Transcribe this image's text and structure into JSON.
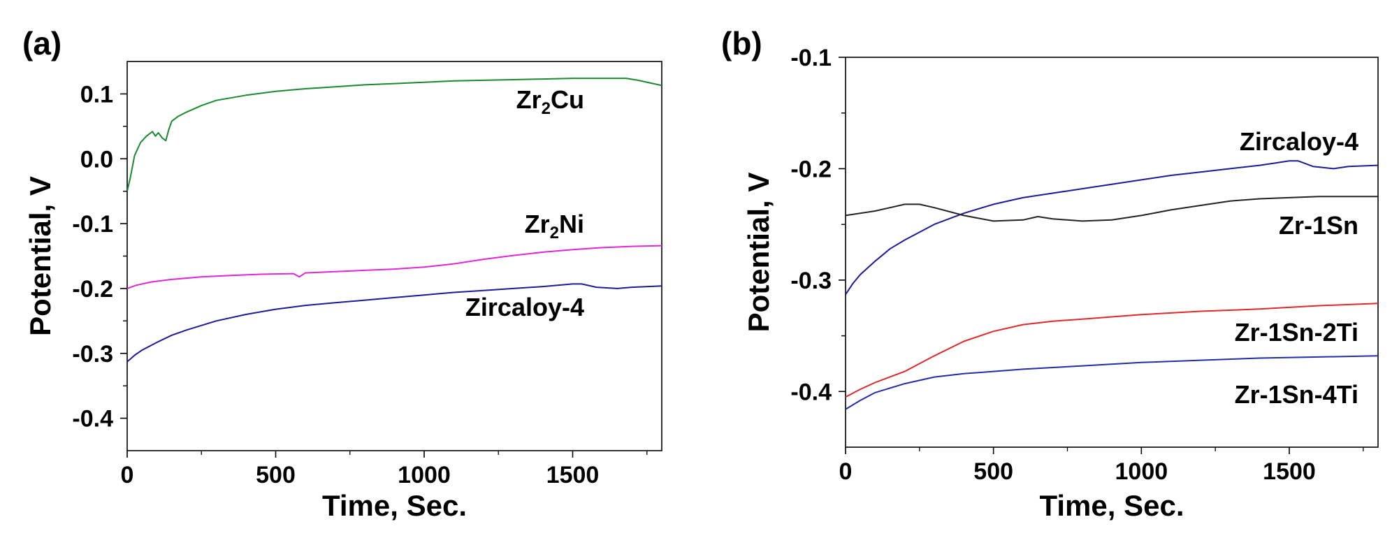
{
  "chart_data": [
    {
      "type": "line",
      "panel_label": "(a)",
      "xlabel": "Time, Sec.",
      "ylabel": "Potential, V",
      "xlim": [
        0,
        1800
      ],
      "ylim": [
        -0.45,
        0.15
      ],
      "xticks": [
        0,
        500,
        1000,
        1500
      ],
      "xtick_labels": [
        "0",
        "500",
        "1000",
        "1500"
      ],
      "yticks": [
        0.1,
        0.0,
        -0.1,
        -0.2,
        -0.3,
        -0.4
      ],
      "ytick_labels": [
        "0.1",
        "0.0",
        "-0.1",
        "-0.2",
        "-0.3",
        "-0.4"
      ],
      "series": [
        {
          "name": "Zr2Cu",
          "label_main": "Zr",
          "label_sub": "2",
          "label_tail": "Cu",
          "color": "#1a8a2e",
          "x": [
            0,
            10,
            25,
            45,
            65,
            85,
            95,
            105,
            118,
            130,
            140,
            150,
            170,
            200,
            250,
            300,
            400,
            500,
            600,
            700,
            800,
            900,
            1000,
            1100,
            1200,
            1300,
            1400,
            1500,
            1600,
            1680,
            1720,
            1760,
            1800
          ],
          "y": [
            -0.05,
            -0.03,
            0.005,
            0.025,
            0.035,
            0.042,
            0.035,
            0.04,
            0.032,
            0.028,
            0.045,
            0.058,
            0.065,
            0.072,
            0.082,
            0.09,
            0.098,
            0.104,
            0.108,
            0.111,
            0.114,
            0.116,
            0.118,
            0.12,
            0.121,
            0.122,
            0.123,
            0.124,
            0.124,
            0.124,
            0.121,
            0.117,
            0.113
          ]
        },
        {
          "name": "Zr2Ni",
          "label_main": "Zr",
          "label_sub": "2",
          "label_tail": "Ni",
          "color": "#e026d8",
          "x": [
            0,
            30,
            80,
            150,
            250,
            350,
            450,
            560,
            580,
            600,
            700,
            800,
            900,
            1000,
            1100,
            1200,
            1300,
            1400,
            1500,
            1600,
            1700,
            1800
          ],
          "y": [
            -0.2,
            -0.195,
            -0.19,
            -0.186,
            -0.182,
            -0.18,
            -0.178,
            -0.177,
            -0.182,
            -0.176,
            -0.174,
            -0.172,
            -0.17,
            -0.167,
            -0.162,
            -0.155,
            -0.149,
            -0.144,
            -0.14,
            -0.137,
            -0.135,
            -0.134
          ]
        },
        {
          "name": "Zircaloy-4",
          "label_main": "Zircaloy-4",
          "label_sub": "",
          "label_tail": "",
          "color": "#1b1b9a",
          "x": [
            0,
            25,
            50,
            100,
            150,
            200,
            300,
            400,
            500,
            600,
            700,
            800,
            900,
            1000,
            1100,
            1200,
            1300,
            1400,
            1450,
            1500,
            1530,
            1580,
            1650,
            1700,
            1800
          ],
          "y": [
            -0.313,
            -0.303,
            -0.295,
            -0.283,
            -0.272,
            -0.264,
            -0.25,
            -0.24,
            -0.232,
            -0.226,
            -0.222,
            -0.218,
            -0.214,
            -0.21,
            -0.206,
            -0.203,
            -0.2,
            -0.197,
            -0.195,
            -0.193,
            -0.193,
            -0.198,
            -0.2,
            -0.198,
            -0.196
          ]
        }
      ]
    },
    {
      "type": "line",
      "panel_label": "(b)",
      "xlabel": "Time, Sec.",
      "ylabel": "Potential, V",
      "xlim": [
        0,
        1800
      ],
      "ylim": [
        -0.45,
        -0.1
      ],
      "xticks": [
        0,
        500,
        1000,
        1500
      ],
      "xtick_labels": [
        "0",
        "500",
        "1000",
        "1500"
      ],
      "yticks": [
        -0.1,
        -0.2,
        -0.3,
        -0.4
      ],
      "ytick_labels": [
        "-0.1",
        "-0.2",
        "-0.3",
        "-0.4"
      ],
      "series": [
        {
          "name": "Zircaloy-4",
          "label_main": "Zircaloy-4",
          "label_sub": "",
          "label_tail": "",
          "color": "#1b1b9a",
          "x": [
            0,
            25,
            50,
            100,
            150,
            200,
            300,
            400,
            500,
            600,
            700,
            800,
            900,
            1000,
            1100,
            1200,
            1300,
            1400,
            1450,
            1500,
            1530,
            1580,
            1650,
            1700,
            1800
          ],
          "y": [
            -0.313,
            -0.303,
            -0.295,
            -0.283,
            -0.272,
            -0.264,
            -0.25,
            -0.24,
            -0.232,
            -0.226,
            -0.222,
            -0.218,
            -0.214,
            -0.21,
            -0.206,
            -0.203,
            -0.2,
            -0.197,
            -0.195,
            -0.193,
            -0.193,
            -0.198,
            -0.2,
            -0.198,
            -0.197
          ]
        },
        {
          "name": "Zr-1Sn",
          "label_main": "Zr-1Sn",
          "label_sub": "",
          "label_tail": "",
          "color": "#222222",
          "x": [
            0,
            100,
            200,
            250,
            300,
            400,
            500,
            600,
            650,
            700,
            800,
            900,
            1000,
            1100,
            1200,
            1300,
            1400,
            1500,
            1600,
            1700,
            1800
          ],
          "y": [
            -0.242,
            -0.238,
            -0.232,
            -0.232,
            -0.235,
            -0.242,
            -0.247,
            -0.246,
            -0.243,
            -0.245,
            -0.247,
            -0.246,
            -0.242,
            -0.237,
            -0.233,
            -0.229,
            -0.227,
            -0.226,
            -0.225,
            -0.225,
            -0.225
          ]
        },
        {
          "name": "Zr-1Sn-2Ti",
          "label_main": "Zr-1Sn-2Ti",
          "label_sub": "",
          "label_tail": "",
          "color": "#e02828",
          "x": [
            0,
            50,
            100,
            200,
            300,
            400,
            500,
            600,
            700,
            800,
            900,
            1000,
            1200,
            1400,
            1600,
            1800
          ],
          "y": [
            -0.405,
            -0.398,
            -0.392,
            -0.382,
            -0.368,
            -0.355,
            -0.346,
            -0.34,
            -0.337,
            -0.335,
            -0.333,
            -0.331,
            -0.328,
            -0.326,
            -0.323,
            -0.321
          ]
        },
        {
          "name": "Zr-1Sn-4Ti",
          "label_main": "Zr-1Sn-4Ti",
          "label_sub": "",
          "label_tail": "",
          "color": "#1f2ea8",
          "x": [
            0,
            50,
            100,
            200,
            300,
            400,
            500,
            600,
            800,
            1000,
            1200,
            1400,
            1600,
            1800
          ],
          "y": [
            -0.416,
            -0.408,
            -0.401,
            -0.393,
            -0.387,
            -0.384,
            -0.382,
            -0.38,
            -0.377,
            -0.374,
            -0.372,
            -0.37,
            -0.369,
            -0.368
          ]
        }
      ]
    }
  ]
}
